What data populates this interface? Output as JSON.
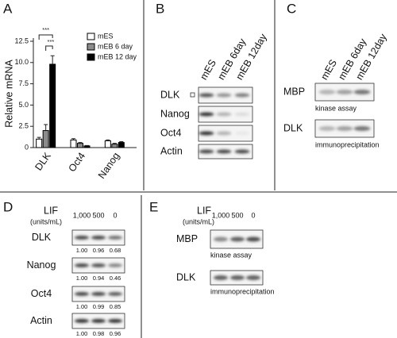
{
  "chart_data": {
    "type": "bar",
    "panel_label": "A",
    "y_label": "Relative mRNA",
    "categories": [
      "DLK",
      "Oct4",
      "Nanog"
    ],
    "series": [
      {
        "name": "mES",
        "color": "#ffffff",
        "values": [
          1.0,
          0.9,
          0.8
        ],
        "errors": [
          0.2,
          0.15,
          0.1
        ]
      },
      {
        "name": "mEB 6 day",
        "color": "#8c8c8c",
        "values": [
          2.0,
          0.5,
          0.4
        ],
        "errors": [
          0.7,
          0.1,
          0.1
        ]
      },
      {
        "name": "mEB 12 day",
        "color": "#000000",
        "values": [
          9.8,
          0.2,
          0.6
        ],
        "errors": [
          1.0,
          0.05,
          0.1
        ]
      }
    ],
    "ylim": [
      0,
      12.5
    ],
    "yticks": [
      0,
      2.5,
      {
        "value": 5,
        "label": "5.0"
      },
      7.5,
      {
        "value": 10,
        "label": "10.0"
      },
      12.5
    ],
    "annotations": [
      "***",
      "***"
    ],
    "legend": "upper right"
  },
  "panel_b": {
    "label": "B",
    "columns": [
      "mES",
      "mEB 6day",
      "mEB 12day"
    ],
    "rows": [
      "DLK",
      "Nanog",
      "Oct4",
      "Actin"
    ]
  },
  "panel_c": {
    "label": "C",
    "columns": [
      "mES",
      "mEB 6day",
      "mEB 12day"
    ],
    "blots": [
      {
        "name": "MBP",
        "caption": "kinase assay"
      },
      {
        "name": "DLK",
        "caption": "immunoprecipitation"
      }
    ]
  },
  "panel_d": {
    "label": "D",
    "treatment": "LIF",
    "unit": "(units/mL)",
    "columns": [
      "1,000",
      "500",
      "0"
    ],
    "rows": [
      {
        "name": "DLK",
        "quant": [
          "1.00",
          "0.96",
          "0.68"
        ]
      },
      {
        "name": "Nanog",
        "quant": [
          "1.00",
          "0.94",
          "0.46"
        ]
      },
      {
        "name": "Oct4",
        "quant": [
          "1.00",
          "0.99",
          "0.85"
        ]
      },
      {
        "name": "Actin",
        "quant": [
          "1.00",
          "0.98",
          "0.96"
        ]
      }
    ]
  },
  "panel_e": {
    "label": "E",
    "treatment": "LIF",
    "unit": "(units/mL)",
    "columns": [
      "1,000",
      "500",
      "0"
    ],
    "blots": [
      {
        "name": "MBP",
        "caption": "kinase assay"
      },
      {
        "name": "DLK",
        "caption": "immunoprecipitation"
      }
    ]
  }
}
